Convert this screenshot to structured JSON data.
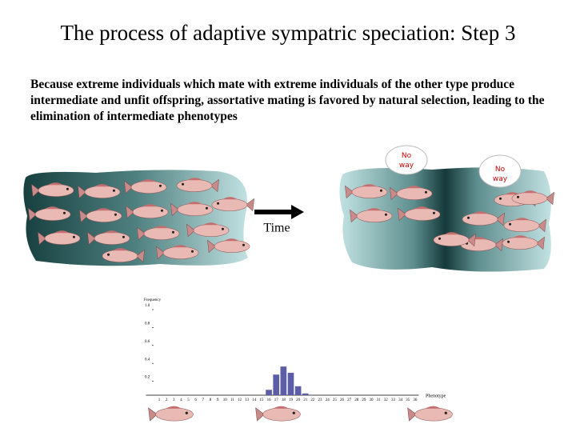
{
  "title": "The process of adaptive sympatric speciation: Step 3",
  "body": "Because extreme individuals which mate with extreme individuals of the other type produce intermediate and unfit offspring, assortative mating is favored by natural selection, leading to the elimination of intermediate phenotypes",
  "bubbles": [
    "No way",
    "No way"
  ],
  "arrow_label": "Time",
  "chart_data": {
    "type": "bar",
    "y_label": "Frequency",
    "x_label": "Phenotype",
    "categories": [
      "1",
      "2",
      "3",
      "4",
      "5",
      "6",
      "7",
      "8",
      "9",
      "10",
      "11",
      "12",
      "13",
      "14",
      "15",
      "16",
      "17",
      "18",
      "19",
      "20",
      "21",
      "22",
      "23",
      "24",
      "25",
      "26",
      "27",
      "28",
      "29",
      "30",
      "31",
      "32",
      "33",
      "34",
      "35",
      "36"
    ],
    "values": [
      0,
      0,
      0,
      0,
      0,
      0,
      0,
      0,
      0,
      0,
      0,
      0,
      0,
      0,
      0,
      0.06,
      0.23,
      0.32,
      0.25,
      0.1,
      0.02,
      0,
      0,
      0,
      0,
      0,
      0,
      0,
      0,
      0,
      0,
      0,
      0,
      0,
      0,
      0
    ],
    "color": "#5b5ea6",
    "ylim": [
      0,
      1
    ],
    "yticks": [
      0.2,
      0.4,
      0.6,
      0.8,
      {
        "value": 1,
        "label": "1.0"
      }
    ]
  }
}
